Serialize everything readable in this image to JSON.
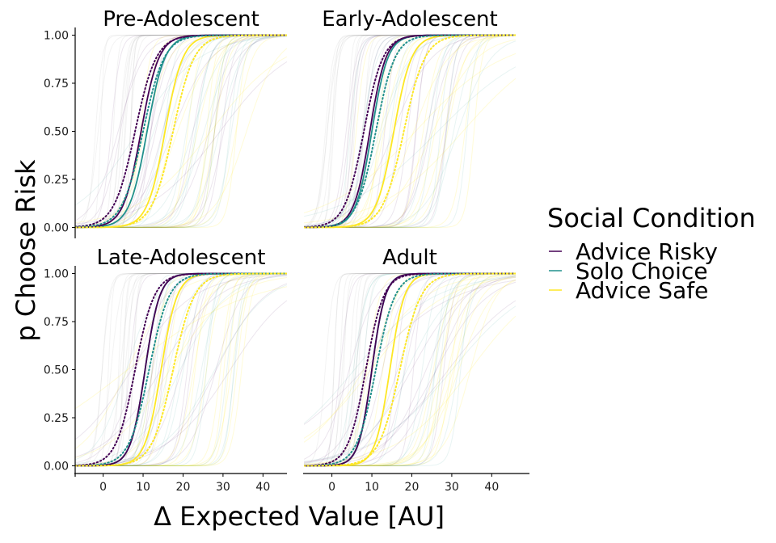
{
  "chart_data": {
    "type": "line",
    "xlabel": "Δ Expected Value [AU]",
    "ylabel": "p Choose Risk",
    "xlim": [
      -7,
      46
    ],
    "ylim": [
      -0.04,
      1.04
    ],
    "x_ticks": [
      0,
      10,
      20,
      30,
      40
    ],
    "y_ticks": [
      0.0,
      0.25,
      0.5,
      0.75,
      1.0
    ],
    "y_tick_labels": [
      "0.00",
      "0.25",
      "0.50",
      "0.75",
      "1.00"
    ],
    "legend": {
      "title": "Social Condition",
      "position": "right",
      "entries": [
        {
          "label": "Advice Risky",
          "color": "#440154"
        },
        {
          "label": "Solo Choice",
          "color": "#21908C"
        },
        {
          "label": "Advice Safe",
          "color": "#FDE725"
        }
      ]
    },
    "facets": [
      {
        "title": "Pre-Adolescent",
        "series": [
          {
            "condition": "Advice Risky",
            "style": "solid",
            "midpoint": 9.5,
            "slope": 0.45
          },
          {
            "condition": "Solo Choice",
            "style": "solid",
            "midpoint": 11.0,
            "slope": 0.45
          },
          {
            "condition": "Advice Safe",
            "style": "solid",
            "midpoint": 15.5,
            "slope": 0.45
          },
          {
            "condition": "Advice Risky",
            "style": "dotted",
            "midpoint": 8.0,
            "slope": 0.38
          },
          {
            "condition": "Solo Choice",
            "style": "dotted",
            "midpoint": 10.0,
            "slope": 0.38
          },
          {
            "condition": "Advice Safe",
            "style": "dotted",
            "midpoint": 17.5,
            "slope": 0.38
          }
        ]
      },
      {
        "title": "Early-Adolescent",
        "series": [
          {
            "condition": "Advice Risky",
            "style": "solid",
            "midpoint": 9.5,
            "slope": 0.5
          },
          {
            "condition": "Solo Choice",
            "style": "solid",
            "midpoint": 10.0,
            "slope": 0.5
          },
          {
            "condition": "Advice Safe",
            "style": "solid",
            "midpoint": 15.5,
            "slope": 0.45
          },
          {
            "condition": "Advice Risky",
            "style": "dotted",
            "midpoint": 8.0,
            "slope": 0.42
          },
          {
            "condition": "Solo Choice",
            "style": "dotted",
            "midpoint": 11.0,
            "slope": 0.42
          },
          {
            "condition": "Advice Safe",
            "style": "dotted",
            "midpoint": 18.0,
            "slope": 0.38
          }
        ]
      },
      {
        "title": "Late-Adolescent",
        "series": [
          {
            "condition": "Advice Risky",
            "style": "solid",
            "midpoint": 10.5,
            "slope": 0.55
          },
          {
            "condition": "Solo Choice",
            "style": "solid",
            "midpoint": 10.5,
            "slope": 0.55
          },
          {
            "condition": "Advice Safe",
            "style": "solid",
            "midpoint": 14.5,
            "slope": 0.5
          },
          {
            "condition": "Advice Risky",
            "style": "dotted",
            "midpoint": 8.0,
            "slope": 0.42
          },
          {
            "condition": "Solo Choice",
            "style": "dotted",
            "midpoint": 11.5,
            "slope": 0.4
          },
          {
            "condition": "Advice Safe",
            "style": "dotted",
            "midpoint": 17.5,
            "slope": 0.38
          }
        ]
      },
      {
        "title": "Adult",
        "series": [
          {
            "condition": "Advice Risky",
            "style": "solid",
            "midpoint": 10.0,
            "slope": 0.6
          },
          {
            "condition": "Solo Choice",
            "style": "solid",
            "midpoint": 10.0,
            "slope": 0.6
          },
          {
            "condition": "Advice Safe",
            "style": "solid",
            "midpoint": 14.5,
            "slope": 0.55
          },
          {
            "condition": "Advice Risky",
            "style": "dotted",
            "midpoint": 8.5,
            "slope": 0.45
          },
          {
            "condition": "Solo Choice",
            "style": "dotted",
            "midpoint": 11.0,
            "slope": 0.42
          },
          {
            "condition": "Advice Safe",
            "style": "dotted",
            "midpoint": 17.0,
            "slope": 0.38
          }
        ]
      }
    ]
  }
}
